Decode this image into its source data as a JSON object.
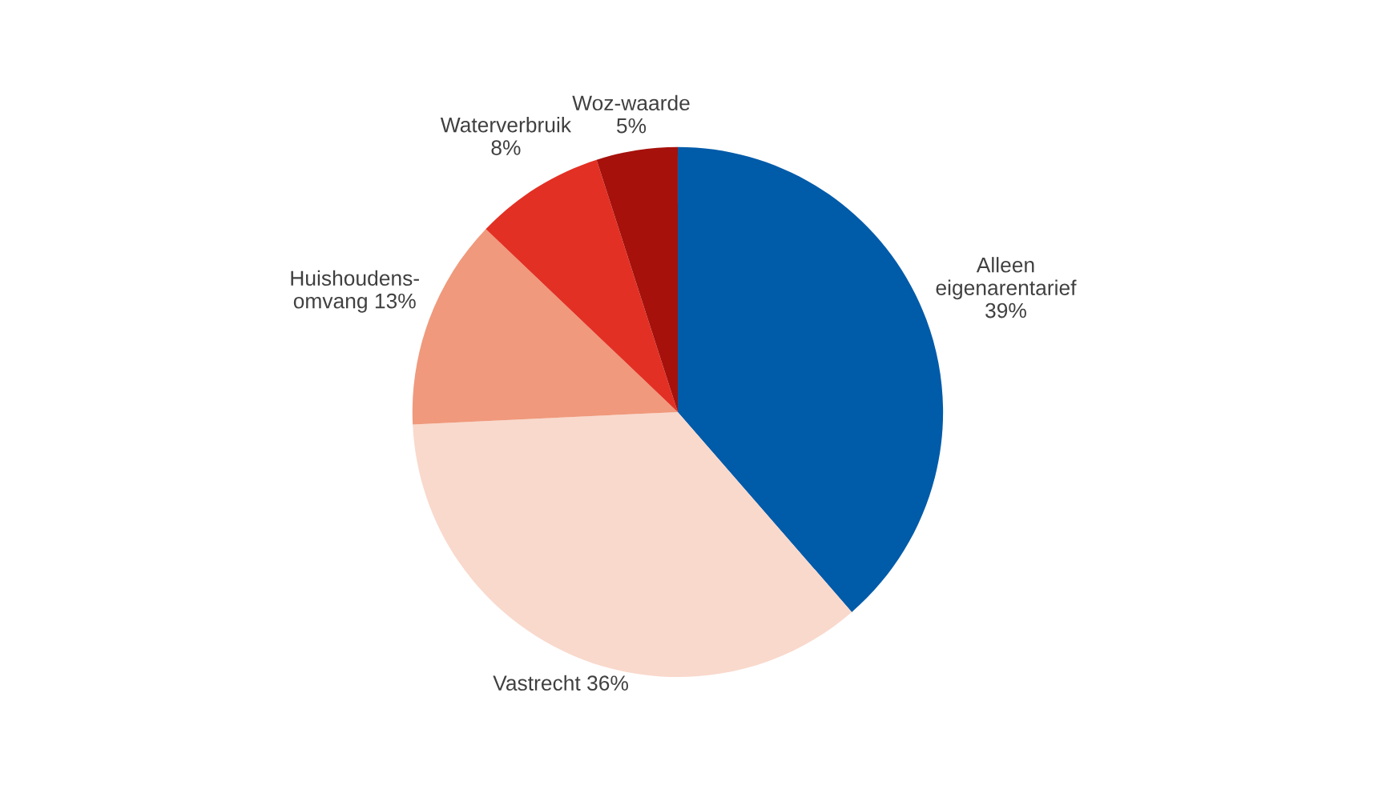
{
  "chart_data": {
    "type": "pie",
    "categories": [
      "Alleen\neigenarentarief",
      "Vastrecht",
      "Huishoudens-\nomvang",
      "Waterverbruik",
      "Woz-waarde"
    ],
    "values": [
      39,
      36,
      13,
      8,
      5
    ],
    "value_labels": [
      "39%",
      "36%",
      "13%",
      "8%",
      "5%"
    ],
    "colors": [
      "#005ba9",
      "#f9d9cc",
      "#f0997c",
      "#e33024",
      "#a6110c"
    ]
  }
}
